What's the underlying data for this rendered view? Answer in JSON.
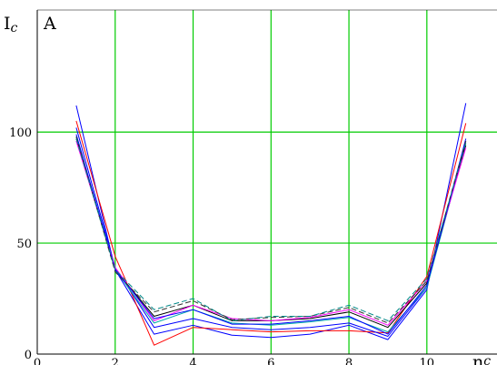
{
  "chart_data": {
    "type": "line",
    "ylabel": "I",
    "ylabel_sub": "c",
    "yunit": "A",
    "xlabel": "n",
    "xlabel_sub": "c",
    "xlim": [
      0,
      11.8
    ],
    "ylim": [
      0,
      155
    ],
    "xticks": [
      0,
      2,
      4,
      6,
      8,
      10
    ],
    "yticks": [
      0,
      50,
      100
    ],
    "grid": true,
    "grid_color": "#00cc00",
    "x": [
      1,
      2,
      3,
      4,
      5,
      6,
      7,
      8,
      9,
      10,
      11
    ],
    "series": [
      {
        "color": "#0000ff",
        "values": [
          112,
          38,
          9,
          13,
          8.5,
          7.5,
          9,
          13,
          6.5,
          29,
          113
        ]
      },
      {
        "color": "#ff0000",
        "values": [
          105,
          44,
          4,
          12,
          11,
          10,
          10.5,
          10.5,
          9.5,
          35,
          104
        ]
      },
      {
        "color": "#0000ff",
        "values": [
          102,
          39,
          12,
          16,
          12,
          11,
          12,
          14,
          8,
          30,
          97
        ]
      },
      {
        "color": "#00aaaa",
        "values": [
          98,
          38,
          14,
          20,
          14,
          13,
          14.5,
          16.5,
          10,
          30,
          95
        ]
      },
      {
        "color": "#000000",
        "values": [
          97,
          38,
          17,
          22,
          15,
          15,
          16,
          19,
          12,
          32,
          94
        ]
      },
      {
        "color": "#ff00ff",
        "values": [
          96,
          39,
          15,
          22,
          16,
          15,
          16.5,
          20,
          13,
          33,
          93
        ]
      },
      {
        "color": "#0000ff",
        "values": [
          99,
          38,
          16,
          20,
          13.5,
          13.5,
          15,
          17,
          9,
          31,
          96
        ]
      },
      {
        "color": "#333333",
        "dashed": true,
        "values": [
          98,
          37,
          19,
          24,
          15.5,
          16.5,
          17,
          21,
          14,
          33,
          96
        ]
      },
      {
        "color": "#008888",
        "dashed": true,
        "values": [
          97,
          38,
          20,
          25,
          15,
          17,
          17,
          22,
          15,
          34,
          95
        ]
      }
    ]
  }
}
